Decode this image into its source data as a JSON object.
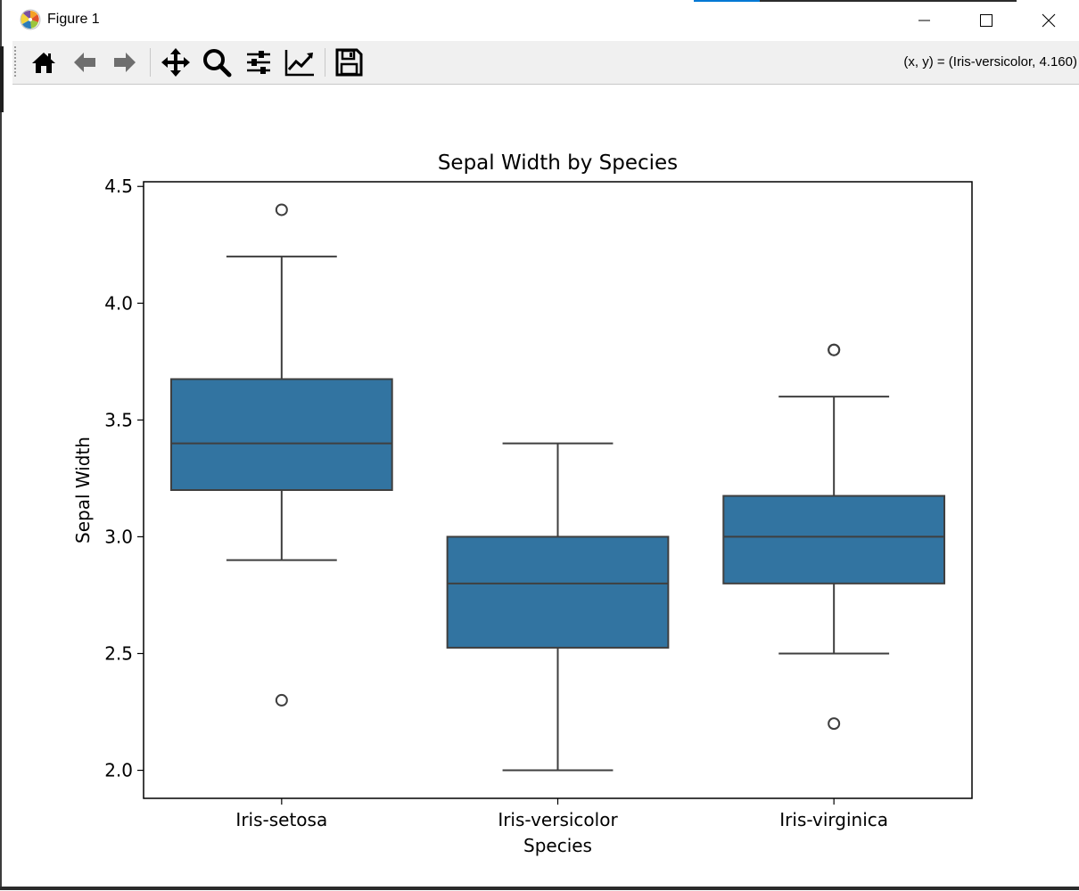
{
  "window": {
    "title": "Figure 1"
  },
  "toolbar": {
    "buttons": [
      {
        "name": "home-icon",
        "label": "Home"
      },
      {
        "name": "back-icon",
        "label": "Back"
      },
      {
        "name": "forward-icon",
        "label": "Forward"
      },
      {
        "name": "pan-icon",
        "label": "Pan"
      },
      {
        "name": "zoom-icon",
        "label": "Zoom"
      },
      {
        "name": "subplots-icon",
        "label": "Configure subplots"
      },
      {
        "name": "edit-curves-icon",
        "label": "Edit axis"
      },
      {
        "name": "save-icon",
        "label": "Save"
      }
    ],
    "coords": "(x, y) = (Iris-versicolor, 4.160)"
  },
  "chart_data": {
    "type": "box",
    "title": "Sepal Width by Species",
    "xlabel": "Species",
    "ylabel": "Sepal Width",
    "ylim": [
      1.88,
      4.52
    ],
    "yticks": [
      "2.0",
      "2.5",
      "3.0",
      "3.5",
      "4.0",
      "4.5"
    ],
    "ytick_values": [
      2.0,
      2.5,
      3.0,
      3.5,
      4.0,
      4.5
    ],
    "categories": [
      "Iris-setosa",
      "Iris-versicolor",
      "Iris-virginica"
    ],
    "boxes": [
      {
        "category": "Iris-setosa",
        "whisker_low": 2.9,
        "q1": 3.2,
        "median": 3.4,
        "q3": 3.675,
        "whisker_high": 4.2,
        "outliers": [
          4.4,
          2.3
        ]
      },
      {
        "category": "Iris-versicolor",
        "whisker_low": 2.0,
        "q1": 2.525,
        "median": 2.8,
        "q3": 3.0,
        "whisker_high": 3.4,
        "outliers": []
      },
      {
        "category": "Iris-virginica",
        "whisker_low": 2.5,
        "q1": 2.8,
        "median": 3.0,
        "q3": 3.175,
        "whisker_high": 3.6,
        "outliers": [
          3.8,
          3.8,
          2.2
        ]
      }
    ],
    "grid": false,
    "legend": "none",
    "box_color": "#3274a1",
    "line_color": "#3f3f3f"
  }
}
